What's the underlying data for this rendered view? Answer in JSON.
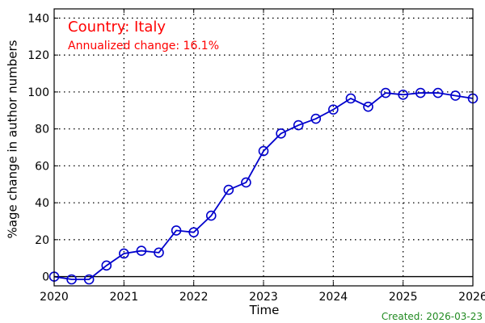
{
  "chart_data": {
    "type": "line",
    "xlabel": "Time",
    "ylabel": "%age change in author numbers",
    "xlim": [
      2020,
      2026
    ],
    "ylim": [
      -5,
      145
    ],
    "x_ticks": [
      2020,
      2021,
      2022,
      2023,
      2024,
      2025,
      2026
    ],
    "y_ticks": [
      0,
      20,
      40,
      60,
      80,
      100,
      120,
      140
    ],
    "grid": true,
    "series": [
      {
        "color": "#0000cc",
        "x": [
          2020.0,
          2020.25,
          2020.5,
          2020.75,
          2021.0,
          2021.25,
          2021.5,
          2021.75,
          2022.0,
          2022.25,
          2022.5,
          2022.75,
          2023.0,
          2023.25,
          2023.5,
          2023.75,
          2024.0,
          2024.25,
          2024.5,
          2024.75,
          2025.0,
          2025.25,
          2025.5,
          2025.75,
          2026.0
        ],
        "y": [
          0,
          -1.5,
          -1.5,
          6,
          12.5,
          14,
          13,
          25,
          24,
          33,
          47,
          51,
          68,
          77.5,
          82,
          85.5,
          90.5,
          96.5,
          92,
          99.5,
          98.5,
          99.5,
          99.5,
          98,
          96.5
        ]
      }
    ],
    "annotations": {
      "country": "Country: Italy",
      "annualized": "Annualized change: 16.1%",
      "color": "#ff0000"
    }
  },
  "footer": {
    "created": "Created: 2026-03-23",
    "color": "#228b22"
  }
}
